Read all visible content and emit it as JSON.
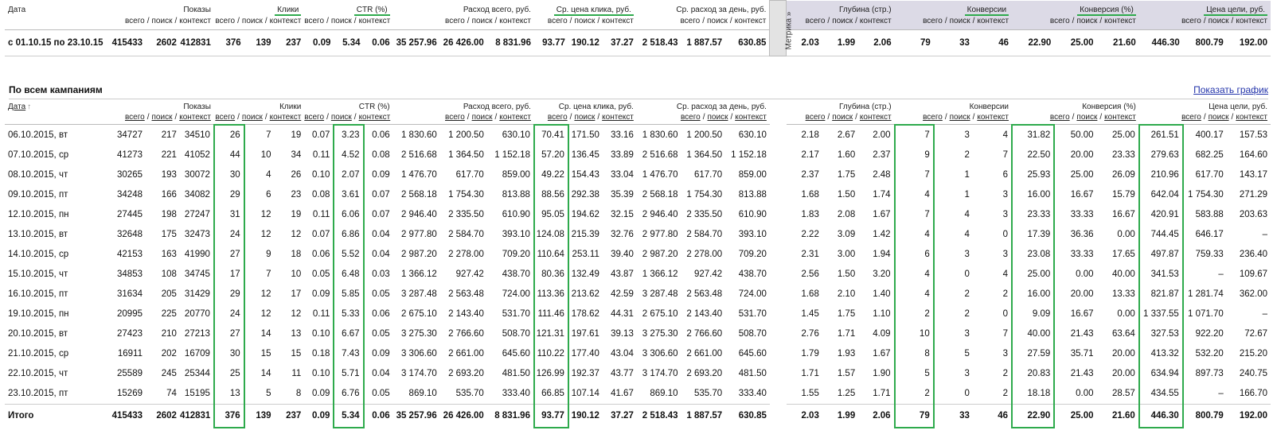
{
  "date_label": "Дата",
  "sort_indicator": "↑",
  "column_groups": [
    "Показы",
    "Клики",
    "CTR (%)",
    "Расход всего, руб.",
    "Ср. цена клика, руб.",
    "Ср. расход за день, руб.",
    "Глубина (стр.)",
    "Конверсии",
    "Конверсия (%)",
    "Цена цели, руб."
  ],
  "sub_labels": [
    "всего",
    "поиск",
    "контекст"
  ],
  "separator": "/",
  "summary": {
    "metrika_tab": "Метрика »",
    "period_label": "с 01.10.15 по 23.10.15",
    "values": [
      "415433",
      "2602",
      "412831",
      "376",
      "139",
      "237",
      "0.09",
      "5.34",
      "0.06",
      "35 257.96",
      "26 426.00",
      "8 831.96",
      "93.77",
      "190.12",
      "37.27",
      "2 518.43",
      "1 887.57",
      "630.85",
      "2.03",
      "1.99",
      "2.06",
      "79",
      "33",
      "46",
      "22.90",
      "25.00",
      "21.60",
      "446.30",
      "800.79",
      "192.00"
    ]
  },
  "section": {
    "title": "По всем кампаниям",
    "link": "Показать график"
  },
  "rows": [
    {
      "date": "06.10.2015, вт",
      "values": [
        "34727",
        "217",
        "34510",
        "26",
        "7",
        "19",
        "0.07",
        "3.23",
        "0.06",
        "1 830.60",
        "1 200.50",
        "630.10",
        "70.41",
        "171.50",
        "33.16",
        "1 830.60",
        "1 200.50",
        "630.10",
        "2.18",
        "2.67",
        "2.00",
        "7",
        "3",
        "4",
        "31.82",
        "50.00",
        "25.00",
        "261.51",
        "400.17",
        "157.53"
      ]
    },
    {
      "date": "07.10.2015, ср",
      "values": [
        "41273",
        "221",
        "41052",
        "44",
        "10",
        "34",
        "0.11",
        "4.52",
        "0.08",
        "2 516.68",
        "1 364.50",
        "1 152.18",
        "57.20",
        "136.45",
        "33.89",
        "2 516.68",
        "1 364.50",
        "1 152.18",
        "2.17",
        "1.60",
        "2.37",
        "9",
        "2",
        "7",
        "22.50",
        "20.00",
        "23.33",
        "279.63",
        "682.25",
        "164.60"
      ]
    },
    {
      "date": "08.10.2015, чт",
      "values": [
        "30265",
        "193",
        "30072",
        "30",
        "4",
        "26",
        "0.10",
        "2.07",
        "0.09",
        "1 476.70",
        "617.70",
        "859.00",
        "49.22",
        "154.43",
        "33.04",
        "1 476.70",
        "617.70",
        "859.00",
        "2.37",
        "1.75",
        "2.48",
        "7",
        "1",
        "6",
        "25.93",
        "25.00",
        "26.09",
        "210.96",
        "617.70",
        "143.17"
      ]
    },
    {
      "date": "09.10.2015, пт",
      "values": [
        "34248",
        "166",
        "34082",
        "29",
        "6",
        "23",
        "0.08",
        "3.61",
        "0.07",
        "2 568.18",
        "1 754.30",
        "813.88",
        "88.56",
        "292.38",
        "35.39",
        "2 568.18",
        "1 754.30",
        "813.88",
        "1.68",
        "1.50",
        "1.74",
        "4",
        "1",
        "3",
        "16.00",
        "16.67",
        "15.79",
        "642.04",
        "1 754.30",
        "271.29"
      ]
    },
    {
      "date": "12.10.2015, пн",
      "values": [
        "27445",
        "198",
        "27247",
        "31",
        "12",
        "19",
        "0.11",
        "6.06",
        "0.07",
        "2 946.40",
        "2 335.50",
        "610.90",
        "95.05",
        "194.62",
        "32.15",
        "2 946.40",
        "2 335.50",
        "610.90",
        "1.83",
        "2.08",
        "1.67",
        "7",
        "4",
        "3",
        "23.33",
        "33.33",
        "16.67",
        "420.91",
        "583.88",
        "203.63"
      ]
    },
    {
      "date": "13.10.2015, вт",
      "values": [
        "32648",
        "175",
        "32473",
        "24",
        "12",
        "12",
        "0.07",
        "6.86",
        "0.04",
        "2 977.80",
        "2 584.70",
        "393.10",
        "124.08",
        "215.39",
        "32.76",
        "2 977.80",
        "2 584.70",
        "393.10",
        "2.22",
        "3.09",
        "1.42",
        "4",
        "4",
        "0",
        "17.39",
        "36.36",
        "0.00",
        "744.45",
        "646.17",
        "–"
      ]
    },
    {
      "date": "14.10.2015, ср",
      "values": [
        "42153",
        "163",
        "41990",
        "27",
        "9",
        "18",
        "0.06",
        "5.52",
        "0.04",
        "2 987.20",
        "2 278.00",
        "709.20",
        "110.64",
        "253.11",
        "39.40",
        "2 987.20",
        "2 278.00",
        "709.20",
        "2.31",
        "3.00",
        "1.94",
        "6",
        "3",
        "3",
        "23.08",
        "33.33",
        "17.65",
        "497.87",
        "759.33",
        "236.40"
      ]
    },
    {
      "date": "15.10.2015, чт",
      "values": [
        "34853",
        "108",
        "34745",
        "17",
        "7",
        "10",
        "0.05",
        "6.48",
        "0.03",
        "1 366.12",
        "927.42",
        "438.70",
        "80.36",
        "132.49",
        "43.87",
        "1 366.12",
        "927.42",
        "438.70",
        "2.56",
        "1.50",
        "3.20",
        "4",
        "0",
        "4",
        "25.00",
        "0.00",
        "40.00",
        "341.53",
        "–",
        "109.67"
      ]
    },
    {
      "date": "16.10.2015, пт",
      "values": [
        "31634",
        "205",
        "31429",
        "29",
        "12",
        "17",
        "0.09",
        "5.85",
        "0.05",
        "3 287.48",
        "2 563.48",
        "724.00",
        "113.36",
        "213.62",
        "42.59",
        "3 287.48",
        "2 563.48",
        "724.00",
        "1.68",
        "2.10",
        "1.40",
        "4",
        "2",
        "2",
        "16.00",
        "20.00",
        "13.33",
        "821.87",
        "1 281.74",
        "362.00"
      ]
    },
    {
      "date": "19.10.2015, пн",
      "values": [
        "20995",
        "225",
        "20770",
        "24",
        "12",
        "12",
        "0.11",
        "5.33",
        "0.06",
        "2 675.10",
        "2 143.40",
        "531.70",
        "111.46",
        "178.62",
        "44.31",
        "2 675.10",
        "2 143.40",
        "531.70",
        "1.45",
        "1.75",
        "1.10",
        "2",
        "2",
        "0",
        "9.09",
        "16.67",
        "0.00",
        "1 337.55",
        "1 071.70",
        "–"
      ]
    },
    {
      "date": "20.10.2015, вт",
      "values": [
        "27423",
        "210",
        "27213",
        "27",
        "14",
        "13",
        "0.10",
        "6.67",
        "0.05",
        "3 275.30",
        "2 766.60",
        "508.70",
        "121.31",
        "197.61",
        "39.13",
        "3 275.30",
        "2 766.60",
        "508.70",
        "2.76",
        "1.71",
        "4.09",
        "10",
        "3",
        "7",
        "40.00",
        "21.43",
        "63.64",
        "327.53",
        "922.20",
        "72.67"
      ]
    },
    {
      "date": "21.10.2015, ср",
      "values": [
        "16911",
        "202",
        "16709",
        "30",
        "15",
        "15",
        "0.18",
        "7.43",
        "0.09",
        "3 306.60",
        "2 661.00",
        "645.60",
        "110.22",
        "177.40",
        "43.04",
        "3 306.60",
        "2 661.00",
        "645.60",
        "1.79",
        "1.93",
        "1.67",
        "8",
        "5",
        "3",
        "27.59",
        "35.71",
        "20.00",
        "413.32",
        "532.20",
        "215.20"
      ]
    },
    {
      "date": "22.10.2015, чт",
      "values": [
        "25589",
        "245",
        "25344",
        "25",
        "14",
        "11",
        "0.10",
        "5.71",
        "0.04",
        "3 174.70",
        "2 693.20",
        "481.50",
        "126.99",
        "192.37",
        "43.77",
        "3 174.70",
        "2 693.20",
        "481.50",
        "1.71",
        "1.57",
        "1.90",
        "5",
        "3",
        "2",
        "20.83",
        "21.43",
        "20.00",
        "634.94",
        "897.73",
        "240.75"
      ]
    },
    {
      "date": "23.10.2015, пт",
      "values": [
        "15269",
        "74",
        "15195",
        "13",
        "5",
        "8",
        "0.09",
        "6.76",
        "0.05",
        "869.10",
        "535.70",
        "333.40",
        "66.85",
        "107.14",
        "41.67",
        "869.10",
        "535.70",
        "333.40",
        "1.55",
        "1.25",
        "1.71",
        "2",
        "0",
        "2",
        "18.18",
        "0.00",
        "28.57",
        "434.55",
        "–",
        "166.70"
      ]
    }
  ],
  "total": {
    "label": "Итого",
    "values": [
      "415433",
      "2602",
      "412831",
      "376",
      "139",
      "237",
      "0.09",
      "5.34",
      "0.06",
      "35 257.96",
      "26 426.00",
      "8 831.96",
      "93.77",
      "190.12",
      "37.27",
      "2 518.43",
      "1 887.57",
      "630.85",
      "2.03",
      "1.99",
      "2.06",
      "79",
      "33",
      "46",
      "22.90",
      "25.00",
      "21.60",
      "446.30",
      "800.79",
      "192.00"
    ]
  }
}
